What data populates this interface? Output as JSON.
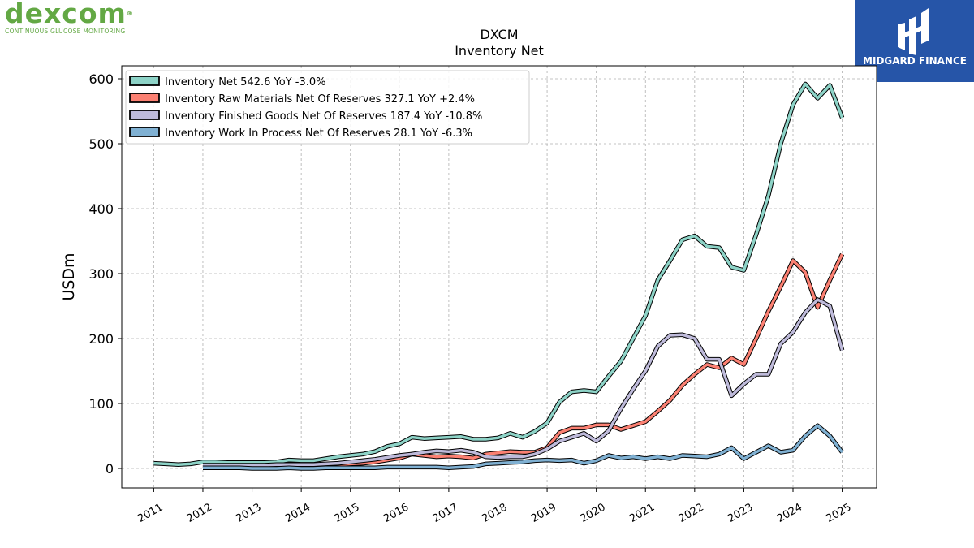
{
  "logo_left": {
    "word": "dexcom",
    "reg": "®",
    "tagline": "CONTINUOUS GLUCOSE MONITORING"
  },
  "logo_right": {
    "name": "MIDGARD FINANCE"
  },
  "colors": {
    "net": "#8dd3c7",
    "raw": "#fb8072",
    "fg": "#bebada",
    "wip": "#80b1d3",
    "brand_green": "#63a844",
    "brand_blue": "#2655a8"
  },
  "chart_data": {
    "type": "line",
    "title": "DXCM",
    "subtitle": "Inventory Net",
    "ylabel": "USDm",
    "xlabel": "",
    "ylim": [
      -30,
      620
    ],
    "xlim": [
      2010.35,
      2025.7
    ],
    "yticks": [
      0,
      100,
      200,
      300,
      400,
      500,
      600
    ],
    "xticks": [
      "2011",
      "2012",
      "2013",
      "2014",
      "2015",
      "2016",
      "2017",
      "2018",
      "2019",
      "2020",
      "2021",
      "2022",
      "2023",
      "2024",
      "2025"
    ],
    "grid": true,
    "legend_position": "top-left",
    "series": [
      {
        "name": "Inventory Net",
        "legend": "Inventory Net  542.6 YoY -3.0%",
        "color": "#8dd3c7",
        "x": [
          2011.0,
          2011.25,
          2011.5,
          2011.75,
          2012.0,
          2012.25,
          2012.5,
          2012.75,
          2013.0,
          2013.25,
          2013.5,
          2013.75,
          2014.0,
          2014.25,
          2014.5,
          2014.75,
          2015.0,
          2015.25,
          2015.5,
          2015.75,
          2016.0,
          2016.25,
          2016.5,
          2016.75,
          2017.0,
          2017.25,
          2017.5,
          2017.75,
          2018.0,
          2018.25,
          2018.5,
          2018.75,
          2019.0,
          2019.25,
          2019.5,
          2019.75,
          2020.0,
          2020.25,
          2020.5,
          2020.75,
          2021.0,
          2021.25,
          2021.5,
          2021.75,
          2022.0,
          2022.25,
          2022.5,
          2022.75,
          2023.0,
          2023.25,
          2023.5,
          2023.75,
          2024.0,
          2024.25,
          2024.5,
          2024.75,
          2025.0
        ],
        "y": [
          8,
          7,
          6,
          7,
          10,
          10,
          9,
          9,
          9,
          9,
          10,
          13,
          12,
          12,
          15,
          18,
          20,
          22,
          26,
          34,
          38,
          48,
          46,
          47,
          48,
          49,
          45,
          45,
          47,
          54,
          48,
          57,
          70,
          102,
          118,
          120,
          118,
          142,
          165,
          200,
          235,
          290,
          320,
          352,
          358,
          342,
          340,
          310,
          305,
          360,
          420,
          500,
          560,
          592,
          570,
          590,
          540
        ]
      },
      {
        "name": "Inventory Raw Materials Net Of Reserves",
        "legend": "Inventory Raw Materials Net Of Reserves  327.1 YoY +2.4%",
        "color": "#fb8072",
        "x": [
          2012.0,
          2012.25,
          2012.5,
          2012.75,
          2013.0,
          2013.25,
          2013.5,
          2013.75,
          2014.0,
          2014.25,
          2014.5,
          2014.75,
          2015.0,
          2015.25,
          2015.5,
          2015.75,
          2016.0,
          2016.25,
          2016.5,
          2016.75,
          2017.0,
          2017.25,
          2017.5,
          2017.75,
          2018.0,
          2018.25,
          2018.5,
          2018.75,
          2019.0,
          2019.25,
          2019.5,
          2019.75,
          2020.0,
          2020.25,
          2020.5,
          2020.75,
          2021.0,
          2021.25,
          2021.5,
          2021.75,
          2022.0,
          2022.25,
          2022.5,
          2022.75,
          2023.0,
          2023.25,
          2023.5,
          2023.75,
          2024.0,
          2024.25,
          2024.5,
          2024.75,
          2025.0
        ],
        "y": [
          4,
          4,
          4,
          4,
          4,
          4,
          4,
          5,
          5,
          5,
          6,
          6,
          7,
          8,
          10,
          13,
          16,
          22,
          20,
          18,
          19,
          18,
          16,
          22,
          24,
          26,
          25,
          25,
          32,
          55,
          62,
          62,
          67,
          67,
          60,
          66,
          72,
          88,
          105,
          128,
          145,
          160,
          155,
          170,
          160,
          200,
          242,
          280,
          320,
          302,
          248,
          290,
          330
        ]
      },
      {
        "name": "Inventory Finished Goods Net Of Reserves",
        "legend": "Inventory Finished Goods Net Of Reserves  187.4 YoY -10.8%",
        "color": "#bebada",
        "x": [
          2012.0,
          2012.25,
          2012.5,
          2012.75,
          2013.0,
          2013.25,
          2013.5,
          2013.75,
          2014.0,
          2014.25,
          2014.5,
          2014.75,
          2015.0,
          2015.25,
          2015.5,
          2015.75,
          2016.0,
          2016.25,
          2016.5,
          2016.75,
          2017.0,
          2017.25,
          2017.5,
          2017.75,
          2018.0,
          2018.25,
          2018.5,
          2018.75,
          2019.0,
          2019.25,
          2019.5,
          2019.75,
          2020.0,
          2020.25,
          2020.5,
          2020.75,
          2021.0,
          2021.25,
          2021.5,
          2021.75,
          2022.0,
          2022.25,
          2022.5,
          2022.75,
          2023.0,
          2023.25,
          2023.5,
          2023.75,
          2024.0,
          2024.25,
          2024.5,
          2024.75,
          2025.0
        ],
        "y": [
          5,
          5,
          5,
          5,
          5,
          5,
          6,
          6,
          6,
          6,
          7,
          8,
          10,
          12,
          14,
          17,
          20,
          22,
          25,
          27,
          26,
          28,
          25,
          18,
          17,
          18,
          18,
          22,
          30,
          42,
          48,
          54,
          42,
          58,
          92,
          122,
          150,
          188,
          205,
          206,
          200,
          168,
          168,
          112,
          130,
          145,
          145,
          192,
          210,
          240,
          260,
          250,
          182
        ]
      },
      {
        "name": "Inventory Work In Process Net Of Reserves",
        "legend": "Inventory Work In Process Net Of Reserves  28.1 YoY -6.3%",
        "color": "#80b1d3",
        "x": [
          2012.0,
          2012.25,
          2012.5,
          2012.75,
          2013.0,
          2013.25,
          2013.5,
          2013.75,
          2014.0,
          2014.25,
          2014.5,
          2014.75,
          2015.0,
          2015.25,
          2015.5,
          2015.75,
          2016.0,
          2016.25,
          2016.5,
          2016.75,
          2017.0,
          2017.25,
          2017.5,
          2017.75,
          2018.0,
          2018.25,
          2018.5,
          2018.75,
          2019.0,
          2019.25,
          2019.5,
          2019.75,
          2020.0,
          2020.25,
          2020.5,
          2020.75,
          2021.0,
          2021.25,
          2021.5,
          2021.75,
          2022.0,
          2022.25,
          2022.5,
          2022.75,
          2023.0,
          2023.25,
          2023.5,
          2023.75,
          2024.0,
          2024.25,
          2024.5,
          2024.75,
          2025.0
        ],
        "y": [
          1,
          1,
          1,
          1,
          0,
          0,
          0,
          1,
          0,
          0,
          1,
          1,
          1,
          1,
          1,
          2,
          2,
          2,
          2,
          2,
          1,
          2,
          3,
          7,
          8,
          9,
          10,
          12,
          13,
          12,
          13,
          8,
          12,
          20,
          16,
          18,
          15,
          18,
          15,
          20,
          19,
          18,
          22,
          32,
          15,
          25,
          35,
          25,
          28,
          50,
          66,
          50,
          25
        ]
      }
    ]
  }
}
